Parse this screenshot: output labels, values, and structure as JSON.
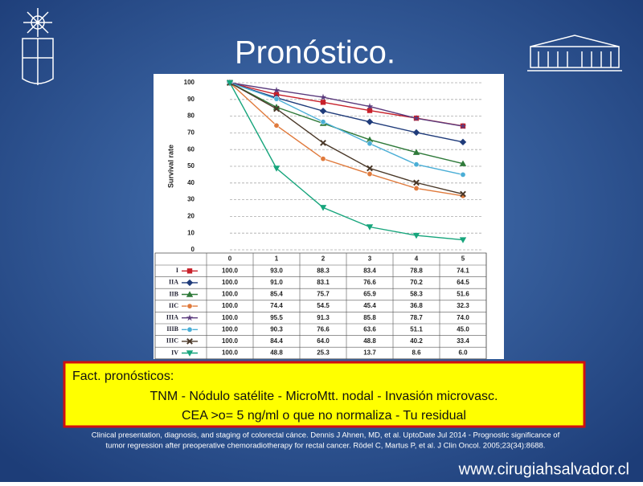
{
  "title": "Pronóstico.",
  "chart_data": {
    "type": "line",
    "ylabel": "Survival rate",
    "x": [
      0,
      1,
      2,
      3,
      4,
      5
    ],
    "xlim": [
      0,
      5
    ],
    "ylim": [
      0,
      100
    ],
    "yticks": [
      0,
      10,
      20,
      30,
      40,
      50,
      60,
      70,
      80,
      90,
      100
    ],
    "grid": true,
    "series": [
      {
        "name": "I",
        "color": "#c8202a",
        "marker": "square",
        "values": [
          100,
          93,
          88.3,
          83.4,
          78.8,
          74.1
        ],
        "value_labels": [
          "100.0",
          "93.0",
          "88.3",
          "83.4",
          "78.8",
          "74.1"
        ]
      },
      {
        "name": "IIA",
        "color": "#1f3b7a",
        "marker": "diamond",
        "values": [
          100,
          91,
          83.1,
          76.6,
          70.2,
          64.5
        ],
        "value_labels": [
          "100.0",
          "91.0",
          "83.1",
          "76.6",
          "70.2",
          "64.5"
        ]
      },
      {
        "name": "IIB",
        "color": "#2f7a3a",
        "marker": "triangle",
        "values": [
          100,
          85.4,
          75.7,
          65.9,
          58.3,
          51.6
        ],
        "value_labels": [
          "100.0",
          "85.4",
          "75.7",
          "65.9",
          "58.3",
          "51.6"
        ]
      },
      {
        "name": "IIC",
        "color": "#e07a3c",
        "marker": "circle",
        "values": [
          100,
          74.4,
          54.5,
          45.4,
          36.8,
          32.3
        ],
        "value_labels": [
          "100.0",
          "74.4",
          "54.5",
          "45.4",
          "36.8",
          "32.3"
        ]
      },
      {
        "name": "IIIA",
        "color": "#5a3a7c",
        "marker": "star",
        "values": [
          100,
          95.5,
          91.3,
          85.8,
          78.7,
          74
        ],
        "value_labels": [
          "100.0",
          "95.5",
          "91.3",
          "85.8",
          "78.7",
          "74.0"
        ]
      },
      {
        "name": "IIIB",
        "color": "#4aaed6",
        "marker": "circle",
        "values": [
          100,
          90.3,
          76.6,
          63.6,
          51.1,
          45
        ],
        "value_labels": [
          "100.0",
          "90.3",
          "76.6",
          "63.6",
          "51.1",
          "45.0"
        ]
      },
      {
        "name": "IIIC",
        "color": "#4a3828",
        "marker": "x",
        "values": [
          100,
          84.4,
          64,
          48.8,
          40.2,
          33.4
        ],
        "value_labels": [
          "100.0",
          "84.4",
          "64.0",
          "48.8",
          "40.2",
          "33.4"
        ]
      },
      {
        "name": "IV",
        "color": "#17a57c",
        "marker": "triangle-down",
        "values": [
          100,
          48.8,
          25.3,
          13.7,
          8.6,
          6
        ],
        "value_labels": [
          "100.0",
          "48.8",
          "25.3",
          "13.7",
          "8.6",
          "6.0"
        ]
      }
    ]
  },
  "box": {
    "heading": "Fact. pronósticos:",
    "lines": [
      "TNM -  Nódulo satélite -  MicroMtt. nodal - Invasión microvasc.",
      "CEA >o= 5 ng/ml o que no normaliza -  Tu residual"
    ]
  },
  "citation": [
    "Clinical presentation, diagnosis, and staging of colorectal cánce. Dennis J Ahnen, MD, et al. UptoDate Jul 2014 - Prognostic significance of",
    "tumor regression after preoperative chemoradiotherapy for rectal cancer. Rödel C, Martus P, et al. J Clin Oncol. 2005;23(34):8688."
  ],
  "website": "www.cirugiahsalvador.cl"
}
